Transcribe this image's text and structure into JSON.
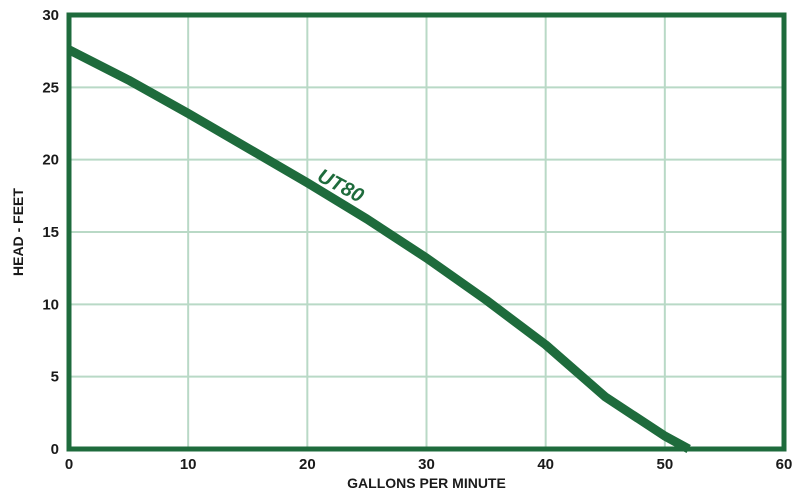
{
  "chart_data": {
    "type": "line",
    "title": "",
    "xlabel": "GALLONS PER MINUTE",
    "ylabel": "HEAD - FEET",
    "xlim": [
      0,
      60
    ],
    "ylim": [
      0,
      30
    ],
    "xticks": [
      0,
      10,
      20,
      30,
      40,
      50,
      60
    ],
    "yticks": [
      0,
      5,
      10,
      15,
      20,
      25,
      30
    ],
    "grid": true,
    "colors": {
      "frame": "#1e6b3c",
      "line": "#1e6b3c",
      "grid": "#b9d9c6"
    },
    "series": [
      {
        "name": "UT80",
        "x": [
          0,
          5,
          10,
          15,
          20,
          25,
          30,
          35,
          40,
          45,
          50,
          52
        ],
        "y": [
          27.6,
          25.5,
          23.2,
          20.8,
          18.4,
          15.9,
          13.2,
          10.3,
          7.2,
          3.6,
          0.9,
          0
        ]
      }
    ]
  }
}
